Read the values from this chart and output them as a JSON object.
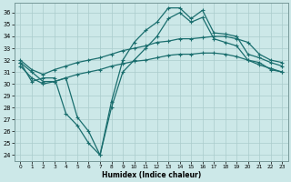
{
  "xlabel": "Humidex (Indice chaleur)",
  "background_color": "#cce8e8",
  "grid_color": "#aacccc",
  "line_color": "#1a6e6e",
  "xlim": [
    -0.5,
    23.5
  ],
  "ylim": [
    23.5,
    36.8
  ],
  "yticks": [
    24,
    25,
    26,
    27,
    28,
    29,
    30,
    31,
    32,
    33,
    34,
    35,
    36
  ],
  "xticks": [
    0,
    1,
    2,
    3,
    4,
    5,
    6,
    7,
    8,
    9,
    10,
    11,
    12,
    13,
    14,
    15,
    16,
    17,
    18,
    19,
    20,
    21,
    22,
    23
  ],
  "curve_spiky_x": [
    0,
    1,
    2,
    3,
    4,
    5,
    6,
    7,
    8,
    9,
    10,
    11,
    12,
    13,
    14,
    15,
    16,
    17,
    18,
    19,
    20,
    21,
    22,
    23
  ],
  "curve_spiky_y": [
    31.8,
    31.0,
    30.2,
    30.2,
    30.5,
    27.2,
    26.0,
    24.0,
    28.5,
    32.0,
    33.5,
    34.5,
    35.2,
    36.4,
    36.4,
    35.5,
    36.2,
    34.3,
    34.2,
    34.0,
    32.5,
    32.2,
    31.8,
    31.5
  ],
  "curve_upper_smooth_x": [
    0,
    1,
    2,
    3,
    4,
    5,
    6,
    7,
    8,
    9,
    10,
    11,
    12,
    13,
    14,
    15,
    16,
    17,
    18,
    19,
    20,
    21,
    22,
    23
  ],
  "curve_upper_smooth_y": [
    32.0,
    31.2,
    30.8,
    31.2,
    31.5,
    31.8,
    32.0,
    32.2,
    32.5,
    32.8,
    33.0,
    33.2,
    33.5,
    33.6,
    33.8,
    33.8,
    33.9,
    34.0,
    34.0,
    33.8,
    33.5,
    32.5,
    32.0,
    31.8
  ],
  "curve_lower_smooth_x": [
    0,
    1,
    2,
    3,
    4,
    5,
    6,
    7,
    8,
    9,
    10,
    11,
    12,
    13,
    14,
    15,
    16,
    17,
    18,
    19,
    20,
    21,
    22,
    23
  ],
  "curve_lower_smooth_y": [
    31.5,
    30.5,
    30.0,
    30.2,
    30.5,
    30.8,
    31.0,
    31.2,
    31.5,
    31.7,
    31.9,
    32.0,
    32.2,
    32.4,
    32.5,
    32.5,
    32.6,
    32.6,
    32.5,
    32.3,
    32.0,
    31.6,
    31.3,
    31.0
  ],
  "curve_bottom_x": [
    0,
    1,
    2,
    3,
    4,
    5,
    6,
    7,
    8,
    9,
    10,
    11,
    12,
    13,
    14,
    15,
    16,
    17,
    18,
    19,
    20,
    21,
    22,
    23
  ],
  "curve_bottom_y": [
    31.8,
    30.2,
    30.5,
    30.5,
    27.5,
    26.5,
    25.0,
    24.0,
    28.0,
    31.0,
    32.0,
    33.0,
    34.0,
    35.5,
    36.0,
    35.2,
    35.6,
    33.8,
    33.5,
    33.2,
    32.0,
    31.8,
    31.2,
    31.0
  ],
  "marker": "+",
  "markersize": 3,
  "linewidth": 0.9
}
